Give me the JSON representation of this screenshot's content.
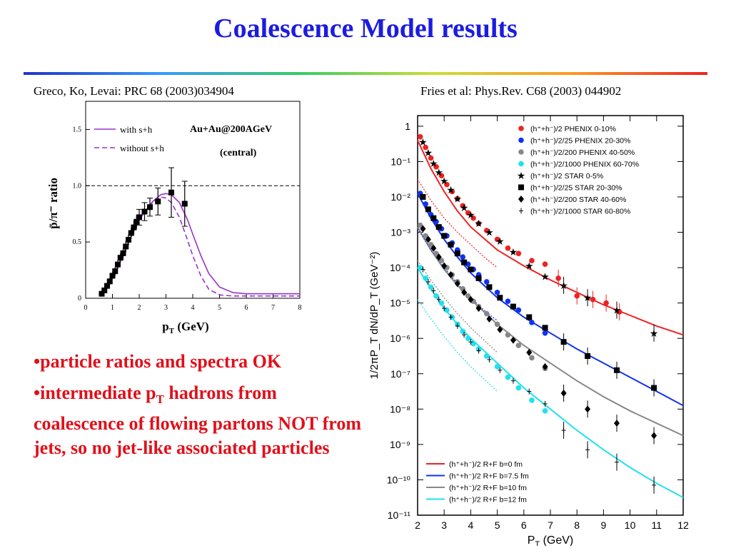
{
  "slide": {
    "title": "Coalescence Model results",
    "ref_left": "Greco, Ko, Levai: PRC 68 (2003)034904",
    "ref_right": "Fries et al: Phys.Rev. C68 (2003) 044902"
  },
  "bullets": [
    {
      "pre": "•particle ratios and spectra OK",
      "sub": "",
      "post": ""
    },
    {
      "pre": "•intermediate p",
      "sub": "T",
      "post": " hadrons from coalescence of flowing partons NOT from jets, so no jet-like associated particles"
    }
  ],
  "chart_data": [
    {
      "type": "line",
      "annotation": "Au+Au@200AGeV",
      "annotation2": "(central)",
      "xlabel": "p",
      "xlabel_sub": "T",
      "xlabel_unit": " (GeV)",
      "ylabel": "p̄/π⁻ ratio",
      "xlim": [
        0,
        8
      ],
      "ylim": [
        0,
        1.75
      ],
      "xticks": [
        0,
        1,
        2,
        3,
        4,
        5,
        6,
        7,
        8
      ],
      "yticks": [
        0,
        0.5,
        1.0,
        1.5
      ],
      "ytick_labels": [
        "0",
        "0.5",
        "1.0",
        "1.5"
      ],
      "reference_line": 1.0,
      "legend": [
        "with s+h",
        "without s+h"
      ],
      "colors": {
        "curve": "#9933cc",
        "data": "#000000"
      },
      "series": [
        {
          "name": "with s+h",
          "style": "solid",
          "x": [
            0.5,
            1.0,
            1.5,
            2.0,
            2.5,
            2.8,
            3.0,
            3.2,
            3.5,
            3.8,
            4.0,
            4.3,
            4.6,
            5.0,
            5.5,
            6.0,
            7.0,
            8.0
          ],
          "y": [
            0.03,
            0.18,
            0.45,
            0.7,
            0.86,
            0.92,
            0.93,
            0.92,
            0.85,
            0.7,
            0.57,
            0.38,
            0.22,
            0.1,
            0.05,
            0.04,
            0.04,
            0.04
          ]
        },
        {
          "name": "without s+h",
          "style": "dashed",
          "x": [
            0.5,
            1.0,
            1.5,
            2.0,
            2.5,
            2.8,
            3.0,
            3.2,
            3.5,
            3.8,
            4.0,
            4.3,
            4.6,
            5.0,
            5.5,
            6.0,
            7.0,
            8.0
          ],
          "y": [
            0.03,
            0.18,
            0.45,
            0.7,
            0.85,
            0.9,
            0.89,
            0.85,
            0.72,
            0.52,
            0.38,
            0.2,
            0.08,
            0.03,
            0.02,
            0.02,
            0.02,
            0.02
          ]
        },
        {
          "name": "data",
          "style": "points",
          "x": [
            0.6,
            0.7,
            0.8,
            0.9,
            1.0,
            1.1,
            1.2,
            1.3,
            1.4,
            1.5,
            1.6,
            1.7,
            1.8,
            1.9,
            2.0,
            2.2,
            2.4,
            2.7,
            3.2,
            3.7
          ],
          "y": [
            0.04,
            0.07,
            0.11,
            0.15,
            0.2,
            0.24,
            0.3,
            0.36,
            0.4,
            0.46,
            0.52,
            0.58,
            0.63,
            0.68,
            0.72,
            0.77,
            0.81,
            0.86,
            0.94,
            0.84
          ],
          "err": [
            0.01,
            0.02,
            0.02,
            0.03,
            0.03,
            0.04,
            0.04,
            0.04,
            0.05,
            0.05,
            0.05,
            0.05,
            0.06,
            0.06,
            0.07,
            0.08,
            0.08,
            0.12,
            0.22,
            0.2
          ]
        }
      ]
    },
    {
      "type": "scatter",
      "xlabel": "P",
      "xlabel_sub": "T",
      "xlabel_unit": " (GeV)",
      "ylabel": "1/2πP_T dN/dP_T (GeV⁻²)",
      "xlim": [
        2,
        12
      ],
      "ylog": true,
      "ylim_exp": [
        -11,
        0.3
      ],
      "xticks": [
        2,
        3,
        4,
        5,
        6,
        7,
        8,
        9,
        10,
        11,
        12
      ],
      "ytick_labels": [
        "1",
        "10⁻¹",
        "10⁻²",
        "10⁻³",
        "10⁻⁴",
        "10⁻⁵",
        "10⁻⁶",
        "10⁻⁷",
        "10⁻⁸",
        "10⁻⁹",
        "10⁻¹⁰",
        "10⁻¹¹"
      ],
      "legend_points": [
        {
          "label": "(h⁺+h⁻)/2 PHENIX 0-10%",
          "marker": "circle",
          "color": "#ee2222"
        },
        {
          "label": "(h⁺+h⁻)/2/25 PHENIX 20-30%",
          "marker": "circle",
          "color": "#1133ee"
        },
        {
          "label": "(h⁺+h⁻)/2/200 PHENIX 40-50%",
          "marker": "circle",
          "color": "#888888"
        },
        {
          "label": "(h⁺+h⁻)/2/1000 PHENIX 60-70%",
          "marker": "circle",
          "color": "#22e0ee"
        },
        {
          "label": "(h⁺+h⁻)/2 STAR 0-5%",
          "marker": "star",
          "color": "#000000"
        },
        {
          "label": "(h⁺+h⁻)/2/25 STAR 20-30%",
          "marker": "square",
          "color": "#000000"
        },
        {
          "label": "(h⁺+h⁻)/2/200 STAR 40-60%",
          "marker": "diamond",
          "color": "#000000"
        },
        {
          "label": "(h⁺+h⁻)/2/1000 STAR 60-80%",
          "marker": "cross",
          "color": "#000000"
        }
      ],
      "legend_lines": [
        {
          "label": "(h⁺+h⁻)/2 R+F b=0 fm",
          "color": "#ee2222"
        },
        {
          "label": "(h⁺+h⁻)/2 R+F b=7.5 fm",
          "color": "#1133ee"
        },
        {
          "label": "(h⁺+h⁻)/2 R+F b=10 fm",
          "color": "#888888"
        },
        {
          "label": "(h⁺+h⁻)/2 R+F b=12 fm",
          "color": "#22e0ee"
        }
      ],
      "curves": [
        {
          "color": "#ee2222",
          "style": "solid",
          "x": [
            2,
            2.5,
            3,
            3.5,
            4,
            5,
            6,
            7,
            8,
            9,
            10,
            11,
            12
          ],
          "logy": [
            -0.4,
            -1.2,
            -1.85,
            -2.4,
            -2.85,
            -3.5,
            -3.95,
            -4.35,
            -4.7,
            -5.05,
            -5.35,
            -5.65,
            -5.9
          ]
        },
        {
          "color": "#1133ee",
          "style": "solid",
          "x": [
            2,
            2.5,
            3,
            3.5,
            4,
            5,
            6,
            7,
            8,
            9,
            10,
            11,
            12
          ],
          "logy": [
            -1.9,
            -2.6,
            -3.2,
            -3.7,
            -4.15,
            -4.85,
            -5.4,
            -5.85,
            -6.3,
            -6.7,
            -7.1,
            -7.5,
            -7.9
          ]
        },
        {
          "color": "#888888",
          "style": "solid",
          "x": [
            2,
            2.5,
            3,
            3.5,
            4,
            5,
            6,
            7,
            8,
            9,
            10,
            11,
            12
          ],
          "logy": [
            -2.85,
            -3.5,
            -4.05,
            -4.5,
            -4.9,
            -5.6,
            -6.2,
            -6.7,
            -7.2,
            -7.65,
            -8.05,
            -8.4,
            -8.75
          ]
        },
        {
          "color": "#22e0ee",
          "style": "solid",
          "x": [
            2,
            2.5,
            3,
            3.5,
            4,
            5,
            6,
            7,
            8,
            9,
            10,
            11,
            12
          ],
          "logy": [
            -4.0,
            -4.6,
            -5.15,
            -5.6,
            -6.0,
            -6.7,
            -7.4,
            -8.0,
            -8.6,
            -9.15,
            -9.65,
            -10.1,
            -10.5
          ]
        },
        {
          "color": "#ee2222",
          "style": "dotted",
          "x": [
            2,
            2.5,
            3,
            3.5,
            4,
            4.5,
            5
          ],
          "logy": [
            -1.5,
            -2.1,
            -2.6,
            -3.0,
            -3.35,
            -3.7,
            -4.0
          ]
        },
        {
          "color": "#1133ee",
          "style": "dotted",
          "x": [
            2,
            2.5,
            3,
            3.5,
            4,
            4.5,
            5
          ],
          "logy": [
            -2.9,
            -3.5,
            -4.0,
            -4.45,
            -4.85,
            -5.2,
            -5.5
          ]
        },
        {
          "color": "#888888",
          "style": "dotted",
          "x": [
            2,
            2.5,
            3,
            3.5,
            4,
            4.5,
            5
          ],
          "logy": [
            -3.8,
            -4.35,
            -4.85,
            -5.3,
            -5.7,
            -6.05,
            -6.4
          ]
        },
        {
          "color": "#22e0ee",
          "style": "dotted",
          "x": [
            2,
            2.5,
            3,
            3.5,
            4,
            4.5,
            5
          ],
          "logy": [
            -4.9,
            -5.45,
            -5.95,
            -6.4,
            -6.8,
            -7.15,
            -7.5
          ]
        }
      ],
      "points": [
        {
          "marker": "circle",
          "color": "#ee2222",
          "x": [
            2.1,
            2.3,
            2.5,
            2.7,
            2.9,
            3.1,
            3.3,
            3.5,
            3.7,
            3.9,
            4.1,
            4.3,
            4.6,
            5.0,
            5.4,
            5.8,
            6.3,
            6.8,
            7.3,
            8.0,
            8.6,
            9.1,
            9.6
          ],
          "logy": [
            -0.3,
            -0.6,
            -0.9,
            -1.15,
            -1.4,
            -1.65,
            -1.85,
            -2.05,
            -2.25,
            -2.45,
            -2.6,
            -2.75,
            -2.95,
            -3.2,
            -3.45,
            -3.6,
            -3.8,
            -3.9,
            -4.3,
            -4.8,
            -4.9,
            -5.0,
            -5.25
          ]
        },
        {
          "marker": "circle",
          "color": "#1133ee",
          "x": [
            2.1,
            2.3,
            2.5,
            2.7,
            2.9,
            3.1,
            3.3,
            3.5,
            3.7,
            3.9,
            4.1,
            4.3,
            4.6,
            5.0,
            5.4,
            5.8,
            6.3,
            6.8
          ],
          "logy": [
            -1.9,
            -2.2,
            -2.5,
            -2.7,
            -2.9,
            -3.1,
            -3.3,
            -3.5,
            -3.7,
            -3.9,
            -4.05,
            -4.2,
            -4.4,
            -4.7,
            -4.95,
            -5.2,
            -5.55,
            -5.85
          ]
        },
        {
          "marker": "circle",
          "color": "#888888",
          "x": [
            2.1,
            2.3,
            2.5,
            2.7,
            2.9,
            3.1,
            3.3,
            3.5,
            3.7,
            3.9,
            4.1,
            4.3,
            4.6,
            5.0,
            5.4,
            5.8,
            6.3,
            6.8
          ],
          "logy": [
            -2.8,
            -3.1,
            -3.35,
            -3.6,
            -3.8,
            -4.0,
            -4.2,
            -4.4,
            -4.6,
            -4.8,
            -4.95,
            -5.1,
            -5.3,
            -5.6,
            -5.9,
            -6.2,
            -6.55,
            -6.85
          ]
        },
        {
          "marker": "circle",
          "color": "#22e0ee",
          "x": [
            2.1,
            2.3,
            2.5,
            2.7,
            2.9,
            3.1,
            3.3,
            3.5,
            3.7,
            3.9,
            4.1,
            4.3,
            4.6,
            5.0,
            5.4,
            5.8,
            6.3,
            6.8
          ],
          "logy": [
            -4.0,
            -4.3,
            -4.55,
            -4.8,
            -5.0,
            -5.2,
            -5.4,
            -5.6,
            -5.8,
            -6.0,
            -6.15,
            -6.3,
            -6.5,
            -6.8,
            -7.1,
            -7.4,
            -7.75,
            -8.05
          ]
        },
        {
          "marker": "star",
          "color": "#000000",
          "x": [
            2.2,
            2.4,
            2.6,
            2.8,
            3.0,
            3.25,
            3.5,
            3.75,
            4.0,
            4.3,
            4.7,
            5.1,
            5.6,
            6.2,
            6.8,
            7.5,
            8.4,
            9.5,
            10.9
          ],
          "logy": [
            -0.45,
            -0.75,
            -1.05,
            -1.3,
            -1.55,
            -1.8,
            -2.05,
            -2.3,
            -2.5,
            -2.75,
            -3.0,
            -3.25,
            -3.55,
            -3.95,
            -4.25,
            -4.5,
            -4.85,
            -5.2,
            -5.85
          ]
        },
        {
          "marker": "square",
          "color": "#000000",
          "x": [
            2.2,
            2.4,
            2.6,
            2.8,
            3.0,
            3.25,
            3.5,
            3.75,
            4.0,
            4.3,
            4.7,
            5.1,
            5.6,
            6.2,
            6.8,
            7.5,
            8.4,
            9.5,
            10.9
          ],
          "logy": [
            -2.0,
            -2.35,
            -2.6,
            -2.85,
            -3.1,
            -3.35,
            -3.6,
            -3.85,
            -4.05,
            -4.3,
            -4.55,
            -4.85,
            -5.1,
            -5.4,
            -5.7,
            -6.1,
            -6.5,
            -6.9,
            -7.4
          ]
        },
        {
          "marker": "diamond",
          "color": "#000000",
          "x": [
            2.2,
            2.4,
            2.6,
            2.8,
            3.0,
            3.25,
            3.5,
            3.75,
            4.0,
            4.3,
            4.7,
            5.1,
            5.6,
            6.2,
            6.8,
            7.5,
            8.4,
            9.5,
            10.9
          ],
          "logy": [
            -2.9,
            -3.2,
            -3.45,
            -3.7,
            -3.95,
            -4.2,
            -4.45,
            -4.7,
            -4.9,
            -5.15,
            -5.45,
            -5.75,
            -6.05,
            -6.4,
            -6.8,
            -7.55,
            -8.0,
            -8.4,
            -8.75
          ]
        },
        {
          "marker": "cross",
          "color": "#000000",
          "x": [
            2.2,
            2.4,
            2.6,
            2.8,
            3.0,
            3.25,
            3.5,
            3.75,
            4.0,
            4.3,
            4.7,
            5.1,
            5.6,
            6.2,
            6.8,
            7.5,
            8.4,
            9.5,
            10.9
          ],
          "logy": [
            -4.05,
            -4.4,
            -4.65,
            -4.9,
            -5.15,
            -5.4,
            -5.65,
            -5.9,
            -6.1,
            -6.35,
            -6.6,
            -6.9,
            -7.2,
            -7.5,
            -7.85,
            -8.6,
            -9.15,
            -9.5,
            -10.15
          ]
        }
      ]
    }
  ]
}
